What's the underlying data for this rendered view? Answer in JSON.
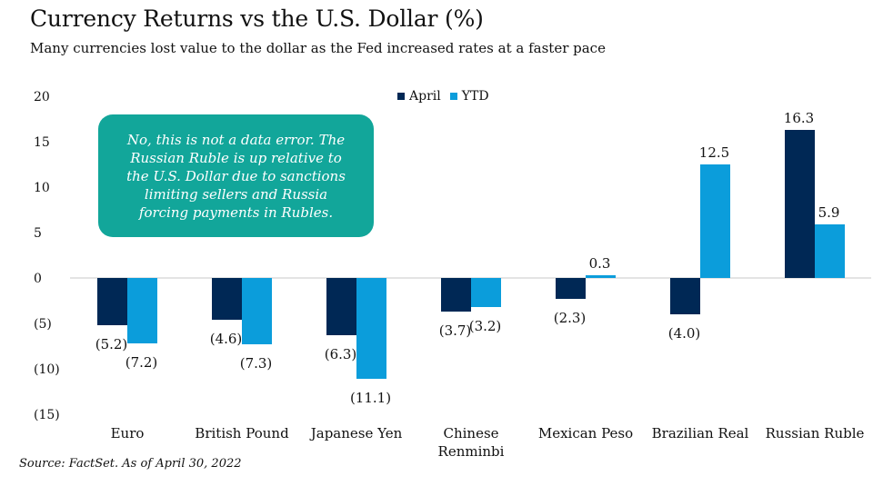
{
  "title": "Currency Returns vs the U.S. Dollar (%)",
  "subtitle": "Many currencies lost value to the dollar as the Fed increased rates at a faster pace",
  "callout": "No, this is not a data error. The Russian Ruble is up relative to the U.S. Dollar due to sanctions limiting sellers and Russia forcing payments in Rubles.",
  "source": "Source: FactSet. As of April 30, 2022",
  "colors": {
    "april": "#002855",
    "ytd": "#0b9ddb",
    "callout": "#12a69a"
  },
  "chart_data": {
    "type": "bar",
    "title": "Currency Returns vs the U.S. Dollar (%)",
    "subtitle": "Many currencies lost value to the dollar as the Fed increased rates at a faster pace",
    "categories": [
      "Euro",
      "British Pound",
      "Japanese Yen",
      "Chinese Renminbi",
      "Mexican Peso",
      "Brazilian Real",
      "Russian Ruble"
    ],
    "series": [
      {
        "name": "April",
        "values": [
          -5.2,
          -4.6,
          -6.3,
          -3.7,
          -2.3,
          -4.0,
          16.3
        ],
        "labels": [
          "(5.2)",
          "(4.6)",
          "(6.3)",
          "(3.7)",
          "(2.3)",
          "(4.0)",
          "16.3"
        ]
      },
      {
        "name": "YTD",
        "values": [
          -7.2,
          -7.3,
          -11.1,
          -3.2,
          0.3,
          12.5,
          5.9
        ],
        "labels": [
          "(7.2)",
          "(7.3)",
          "(11.1)",
          "(3.2)",
          "0.3",
          "12.5",
          "5.9"
        ]
      }
    ],
    "ylim": [
      -15,
      20
    ],
    "yticks": [
      20,
      15,
      10,
      5,
      0,
      -5,
      -10,
      -15
    ],
    "ytick_labels": [
      "20",
      "15",
      "10",
      "5",
      "0",
      "(5)",
      "(10)",
      "(15)"
    ],
    "legend": "top-center",
    "grid": false
  }
}
